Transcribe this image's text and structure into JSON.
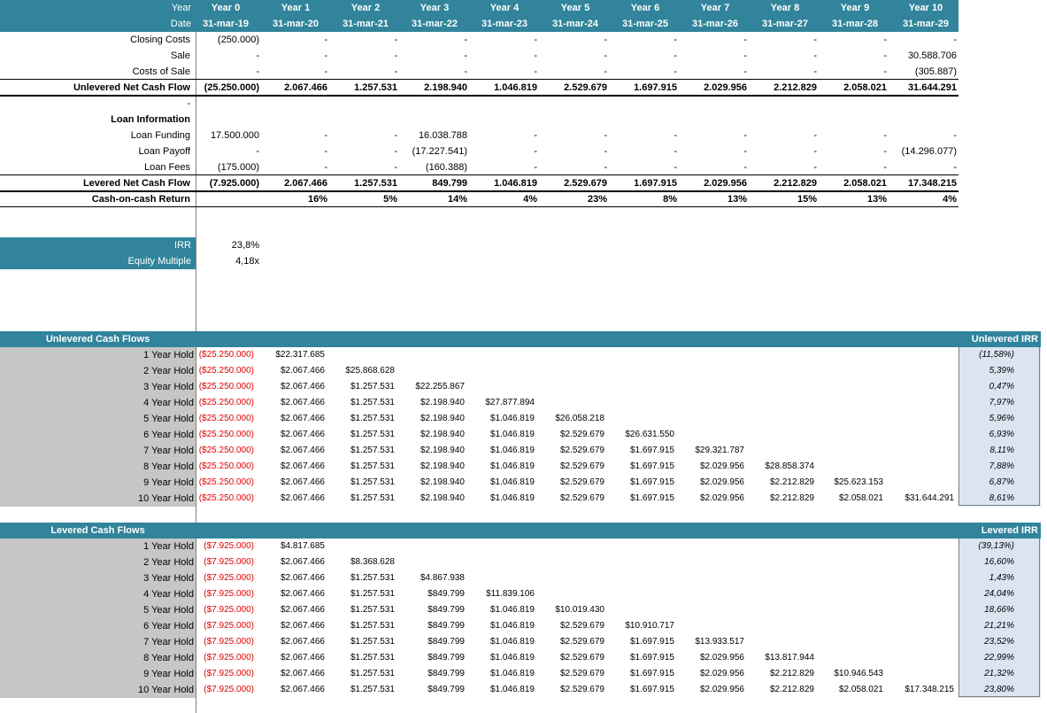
{
  "header": {
    "row1_label": "Year",
    "row2_label": "Date",
    "years": [
      "Year 0",
      "Year 1",
      "Year 2",
      "Year 3",
      "Year 4",
      "Year 5",
      "Year 6",
      "Year 7",
      "Year 8",
      "Year 9",
      "Year 10"
    ],
    "dates": [
      "31-mar-19",
      "31-mar-20",
      "31-mar-21",
      "31-mar-22",
      "31-mar-23",
      "31-mar-24",
      "31-mar-25",
      "31-mar-26",
      "31-mar-27",
      "31-mar-28",
      "31-mar-29"
    ]
  },
  "top_rows": [
    {
      "label": "Closing Costs",
      "values": [
        "(250.000)",
        "-",
        "-",
        "-",
        "-",
        "-",
        "-",
        "-",
        "-",
        "-",
        "-"
      ]
    },
    {
      "label": "Sale",
      "values": [
        "-",
        "-",
        "-",
        "-",
        "-",
        "-",
        "-",
        "-",
        "-",
        "-",
        "30.588.706"
      ]
    },
    {
      "label": "Costs of Sale",
      "values": [
        "-",
        "-",
        "-",
        "-",
        "-",
        "-",
        "-",
        "-",
        "-",
        "-",
        "(305.887)"
      ]
    },
    {
      "label": "Unlevered Net Cash Flow",
      "values": [
        "(25.250.000)",
        "2.067.466",
        "1.257.531",
        "2.198.940",
        "1.046.819",
        "2.529.679",
        "1.697.915",
        "2.029.956",
        "2.212.829",
        "2.058.021",
        "31.644.291"
      ]
    },
    {
      "label": "-",
      "values": []
    },
    {
      "label": "Loan Information",
      "values": []
    },
    {
      "label": "Loan Funding",
      "values": [
        "17.500.000",
        "-",
        "-",
        "16.038.788",
        "-",
        "-",
        "-",
        "-",
        "-",
        "-",
        "-"
      ]
    },
    {
      "label": "Loan Payoff",
      "values": [
        "-",
        "-",
        "-",
        "(17.227.541)",
        "-",
        "-",
        "-",
        "-",
        "-",
        "-",
        "(14.296.077)"
      ]
    },
    {
      "label": "Loan Fees",
      "values": [
        "(175.000)",
        "-",
        "-",
        "(160.388)",
        "-",
        "-",
        "-",
        "-",
        "-",
        "-",
        "-"
      ]
    },
    {
      "label": "Levered Net Cash Flow",
      "values": [
        "(7.925.000)",
        "2.067.466",
        "1.257.531",
        "849.799",
        "1.046.819",
        "2.529.679",
        "1.697.915",
        "2.029.956",
        "2.212.829",
        "2.058.021",
        "17.348.215"
      ]
    },
    {
      "label": "Cash-on-cash Return",
      "values": [
        "",
        "16%",
        "5%",
        "14%",
        "4%",
        "23%",
        "8%",
        "13%",
        "15%",
        "13%",
        "4%"
      ]
    }
  ],
  "summary": {
    "irr_label": "IRR",
    "irr_value": "23,8%",
    "multiple_label": "Equity Multiple",
    "multiple_value": "4,18x"
  },
  "unlevered": {
    "title": "Unlevered Cash Flows",
    "irr_title": "Unlevered IRR",
    "rows": [
      {
        "label": "1 Year Hold",
        "values": [
          "($25.250.000)",
          "$22.317.685"
        ],
        "irr": "(11,58%)"
      },
      {
        "label": "2 Year Hold",
        "values": [
          "($25.250.000)",
          "$2.067.466",
          "$25.868.628"
        ],
        "irr": "5,39%"
      },
      {
        "label": "3 Year Hold",
        "values": [
          "($25.250.000)",
          "$2.067.466",
          "$1.257.531",
          "$22.255.867"
        ],
        "irr": "0,47%"
      },
      {
        "label": "4 Year Hold",
        "values": [
          "($25.250.000)",
          "$2.067.466",
          "$1.257.531",
          "$2.198.940",
          "$27.877.894"
        ],
        "irr": "7,97%"
      },
      {
        "label": "5 Year Hold",
        "values": [
          "($25.250.000)",
          "$2.067.466",
          "$1.257.531",
          "$2.198.940",
          "$1.046.819",
          "$26.058.218"
        ],
        "irr": "5,96%"
      },
      {
        "label": "6 Year Hold",
        "values": [
          "($25.250.000)",
          "$2.067.466",
          "$1.257.531",
          "$2.198.940",
          "$1.046.819",
          "$2.529.679",
          "$26.631.550"
        ],
        "irr": "6,93%"
      },
      {
        "label": "7 Year Hold",
        "values": [
          "($25.250.000)",
          "$2.067.466",
          "$1.257.531",
          "$2.198.940",
          "$1.046.819",
          "$2.529.679",
          "$1.697.915",
          "$29.321.787"
        ],
        "irr": "8,11%"
      },
      {
        "label": "8 Year Hold",
        "values": [
          "($25.250.000)",
          "$2.067.466",
          "$1.257.531",
          "$2.198.940",
          "$1.046.819",
          "$2.529.679",
          "$1.697.915",
          "$2.029.956",
          "$28.858.374"
        ],
        "irr": "7,88%"
      },
      {
        "label": "9 Year Hold",
        "values": [
          "($25.250.000)",
          "$2.067.466",
          "$1.257.531",
          "$2.198.940",
          "$1.046.819",
          "$2.529.679",
          "$1.697.915",
          "$2.029.956",
          "$2.212.829",
          "$25.623.153"
        ],
        "irr": "6,87%"
      },
      {
        "label": "10 Year Hold",
        "values": [
          "($25.250.000)",
          "$2.067.466",
          "$1.257.531",
          "$2.198.940",
          "$1.046.819",
          "$2.529.679",
          "$1.697.915",
          "$2.029.956",
          "$2.212.829",
          "$2.058.021",
          "$31.644.291"
        ],
        "irr": "8,61%"
      }
    ]
  },
  "levered": {
    "title": "Levered Cash Flows",
    "irr_title": "Levered IRR",
    "rows": [
      {
        "label": "1 Year Hold",
        "values": [
          "($7.925.000)",
          "$4.817.685"
        ],
        "irr": "(39,13%)"
      },
      {
        "label": "2 Year Hold",
        "values": [
          "($7.925.000)",
          "$2.067.466",
          "$8.368.628"
        ],
        "irr": "16,60%"
      },
      {
        "label": "3 Year Hold",
        "values": [
          "($7.925.000)",
          "$2.067.466",
          "$1.257.531",
          "$4.867.938"
        ],
        "irr": "1,43%"
      },
      {
        "label": "4 Year Hold",
        "values": [
          "($7.925.000)",
          "$2.067.466",
          "$1.257.531",
          "$849.799",
          "$11.839.106"
        ],
        "irr": "24,04%"
      },
      {
        "label": "5 Year Hold",
        "values": [
          "($7.925.000)",
          "$2.067.466",
          "$1.257.531",
          "$849.799",
          "$1.046.819",
          "$10.019.430"
        ],
        "irr": "18,66%"
      },
      {
        "label": "6 Year Hold",
        "values": [
          "($7.925.000)",
          "$2.067.466",
          "$1.257.531",
          "$849.799",
          "$1.046.819",
          "$2.529.679",
          "$10.910.717"
        ],
        "irr": "21,21%"
      },
      {
        "label": "7 Year Hold",
        "values": [
          "($7.925.000)",
          "$2.067.466",
          "$1.257.531",
          "$849.799",
          "$1.046.819",
          "$2.529.679",
          "$1.697.915",
          "$13.933.517"
        ],
        "irr": "23,52%"
      },
      {
        "label": "8 Year Hold",
        "values": [
          "($7.925.000)",
          "$2.067.466",
          "$1.257.531",
          "$849.799",
          "$1.046.819",
          "$2.529.679",
          "$1.697.915",
          "$2.029.956",
          "$13.817.944"
        ],
        "irr": "22,99%"
      },
      {
        "label": "9 Year Hold",
        "values": [
          "($7.925.000)",
          "$2.067.466",
          "$1.257.531",
          "$849.799",
          "$1.046.819",
          "$2.529.679",
          "$1.697.915",
          "$2.029.956",
          "$2.212.829",
          "$10.946.543"
        ],
        "irr": "21,32%"
      },
      {
        "label": "10 Year Hold",
        "values": [
          "($7.925.000)",
          "$2.067.466",
          "$1.257.531",
          "$849.799",
          "$1.046.819",
          "$2.529.679",
          "$1.697.915",
          "$2.029.956",
          "$2.212.829",
          "$2.058.021",
          "$17.348.215"
        ],
        "irr": "23,80%"
      }
    ]
  }
}
